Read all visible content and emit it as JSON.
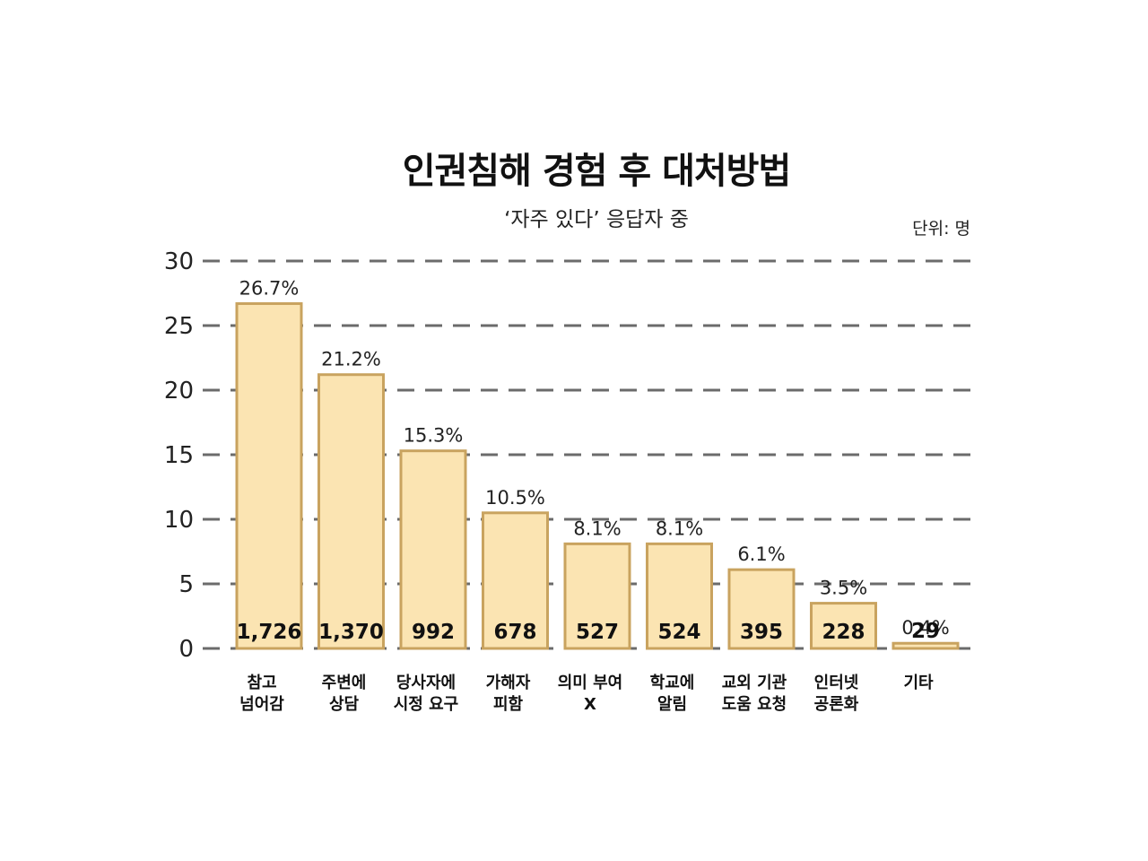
{
  "header": {
    "title": "인권침해 경험 후 대처방법",
    "subtitle": "‘자주 있다’ 응답자 중",
    "unit_label": "단위: 명"
  },
  "chart_data": {
    "type": "bar",
    "categories": [
      [
        "참고",
        "넘어감"
      ],
      [
        "주변에",
        "상담"
      ],
      [
        "당사자에",
        "시정 요구"
      ],
      [
        "가해자",
        "피함"
      ],
      [
        "의미 부여",
        "X"
      ],
      [
        "학교에",
        "알림"
      ],
      [
        "교외 기관",
        "도움 요청"
      ],
      [
        "인터넷",
        "공론화"
      ],
      [
        "기타"
      ]
    ],
    "values": [
      26.7,
      21.2,
      15.3,
      10.5,
      8.1,
      8.1,
      6.1,
      3.5,
      0.4
    ],
    "percent_labels": [
      "26.7%",
      "21.2%",
      "15.3%",
      "10.5%",
      "8.1%",
      "8.1%",
      "6.1%",
      "3.5%",
      "0.4%"
    ],
    "count_labels": [
      "1,726",
      "1,370",
      "992",
      "678",
      "527",
      "524",
      "395",
      "228",
      "29"
    ],
    "ylim": [
      0,
      30
    ],
    "yticks": [
      0,
      5,
      10,
      15,
      20,
      25,
      30
    ],
    "grid": true,
    "grid_style": "dashed",
    "colors": {
      "bar_fill": "#fbe4b2",
      "bar_stroke": "#c9a35f",
      "grid": "#6b6b6b"
    }
  }
}
